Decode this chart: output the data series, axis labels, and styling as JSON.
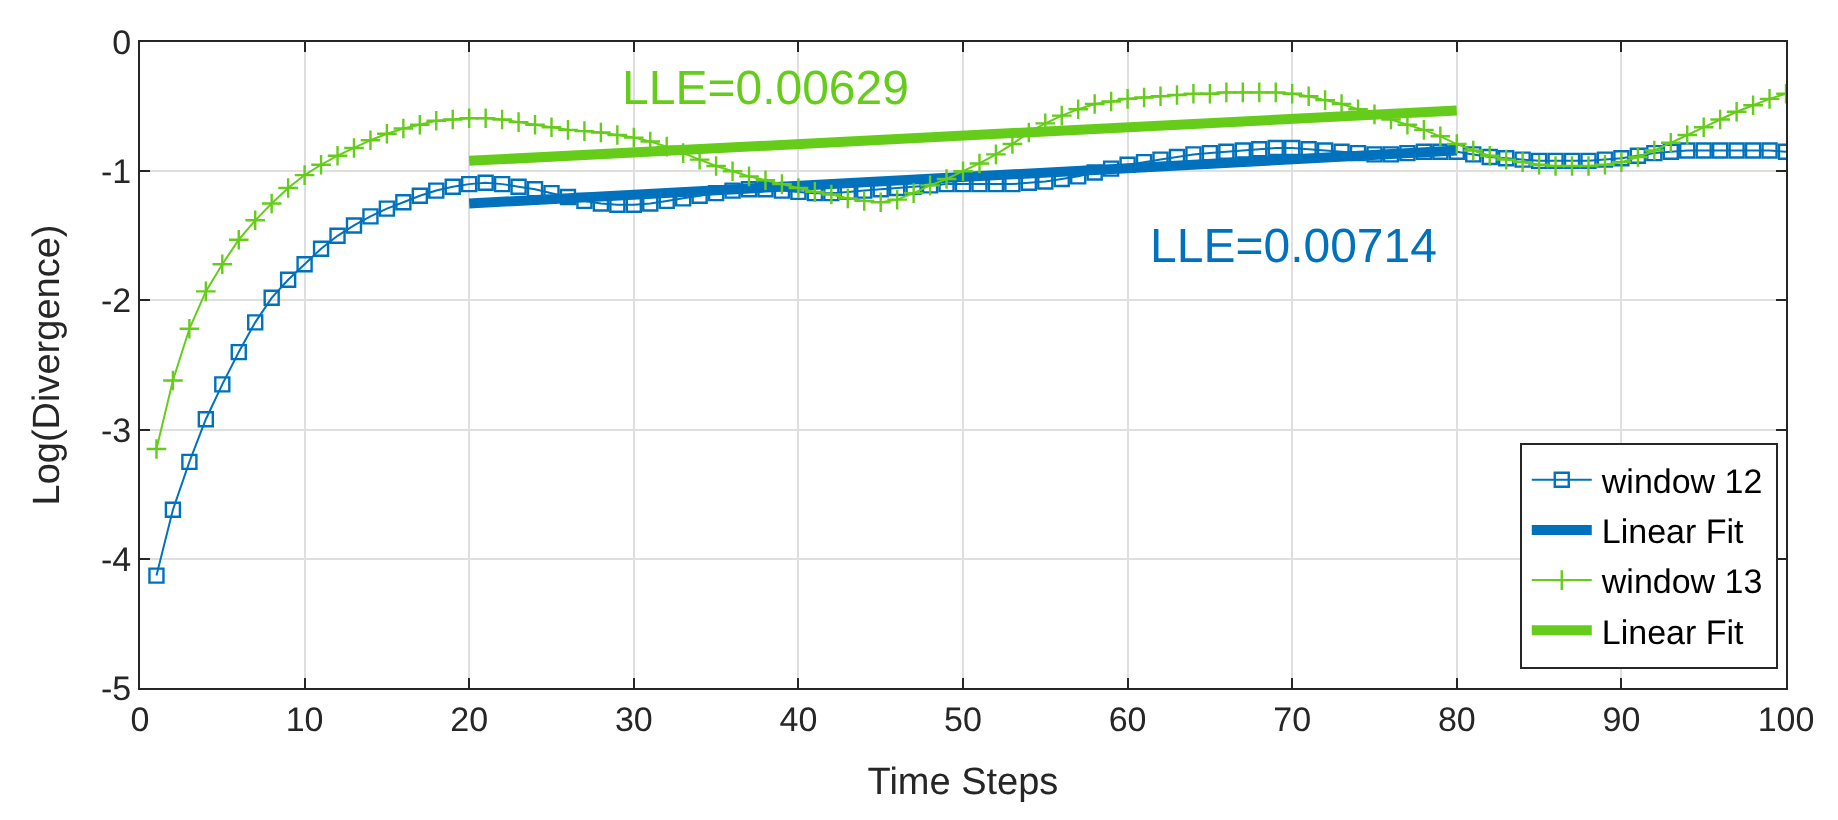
{
  "chart_data": {
    "type": "line",
    "xlabel": "Time Steps",
    "ylabel": "Log(Divergence)",
    "xlim": [
      0,
      100
    ],
    "ylim": [
      -5,
      0
    ],
    "xticks": [
      0,
      10,
      20,
      30,
      40,
      50,
      60,
      70,
      80,
      90,
      100
    ],
    "yticks": [
      -5,
      -4,
      -3,
      -2,
      -1,
      0
    ],
    "grid": true,
    "legend": "bottom right",
    "series": [
      {
        "name": "window 12",
        "color": "#0072bd",
        "marker": "square",
        "x": [
          1,
          2,
          3,
          4,
          5,
          6,
          7,
          8,
          9,
          10,
          11,
          12,
          13,
          14,
          15,
          16,
          17,
          18,
          19,
          20,
          21,
          22,
          23,
          24,
          25,
          26,
          27,
          28,
          29,
          30,
          31,
          32,
          33,
          34,
          35,
          36,
          37,
          38,
          39,
          40,
          41,
          42,
          43,
          44,
          45,
          46,
          47,
          48,
          49,
          50,
          51,
          52,
          53,
          54,
          55,
          56,
          57,
          58,
          59,
          60,
          61,
          62,
          63,
          64,
          65,
          66,
          67,
          68,
          69,
          70,
          71,
          72,
          73,
          74,
          75,
          76,
          77,
          78,
          79,
          80,
          81,
          82,
          83,
          84,
          85,
          86,
          87,
          88,
          89,
          90,
          91,
          92,
          93,
          94,
          95,
          96,
          97,
          98,
          99,
          100
        ],
        "values": [
          -4.13,
          -3.62,
          -3.25,
          -2.92,
          -2.65,
          -2.4,
          -2.17,
          -1.98,
          -1.84,
          -1.72,
          -1.6,
          -1.5,
          -1.42,
          -1.35,
          -1.29,
          -1.24,
          -1.19,
          -1.15,
          -1.12,
          -1.1,
          -1.09,
          -1.1,
          -1.12,
          -1.14,
          -1.17,
          -1.2,
          -1.23,
          -1.25,
          -1.26,
          -1.26,
          -1.25,
          -1.23,
          -1.21,
          -1.19,
          -1.17,
          -1.15,
          -1.14,
          -1.14,
          -1.15,
          -1.16,
          -1.17,
          -1.17,
          -1.16,
          -1.15,
          -1.14,
          -1.13,
          -1.12,
          -1.11,
          -1.1,
          -1.1,
          -1.1,
          -1.1,
          -1.1,
          -1.09,
          -1.08,
          -1.06,
          -1.04,
          -1.01,
          -0.98,
          -0.95,
          -0.93,
          -0.91,
          -0.89,
          -0.87,
          -0.86,
          -0.85,
          -0.84,
          -0.83,
          -0.82,
          -0.82,
          -0.83,
          -0.84,
          -0.85,
          -0.86,
          -0.87,
          -0.87,
          -0.86,
          -0.85,
          -0.85,
          -0.85,
          -0.87,
          -0.89,
          -0.9,
          -0.91,
          -0.92,
          -0.92,
          -0.92,
          -0.92,
          -0.91,
          -0.9,
          -0.88,
          -0.86,
          -0.85,
          -0.84,
          -0.84,
          -0.84,
          -0.84,
          -0.84,
          -0.84,
          -0.85
        ]
      },
      {
        "name": "Linear Fit",
        "color": "#0072bd",
        "marker": "none",
        "x": [
          20,
          80
        ],
        "values": [
          -1.25,
          -0.84
        ]
      },
      {
        "name": "window 13",
        "color": "#66cc1a",
        "marker": "cross",
        "x": [
          1,
          2,
          3,
          4,
          5,
          6,
          7,
          8,
          9,
          10,
          11,
          12,
          13,
          14,
          15,
          16,
          17,
          18,
          19,
          20,
          21,
          22,
          23,
          24,
          25,
          26,
          27,
          28,
          29,
          30,
          31,
          32,
          33,
          34,
          35,
          36,
          37,
          38,
          39,
          40,
          41,
          42,
          43,
          44,
          45,
          46,
          47,
          48,
          49,
          50,
          51,
          52,
          53,
          54,
          55,
          56,
          57,
          58,
          59,
          60,
          61,
          62,
          63,
          64,
          65,
          66,
          67,
          68,
          69,
          70,
          71,
          72,
          73,
          74,
          75,
          76,
          77,
          78,
          79,
          80,
          81,
          82,
          83,
          84,
          85,
          86,
          87,
          88,
          89,
          90,
          91,
          92,
          93,
          94,
          95,
          96,
          97,
          98,
          99,
          100
        ],
        "values": [
          -3.15,
          -2.62,
          -2.22,
          -1.93,
          -1.72,
          -1.53,
          -1.38,
          -1.25,
          -1.13,
          -1.03,
          -0.95,
          -0.88,
          -0.82,
          -0.76,
          -0.71,
          -0.67,
          -0.64,
          -0.61,
          -0.6,
          -0.59,
          -0.59,
          -0.6,
          -0.62,
          -0.64,
          -0.66,
          -0.68,
          -0.69,
          -0.7,
          -0.72,
          -0.74,
          -0.77,
          -0.81,
          -0.86,
          -0.91,
          -0.96,
          -1.0,
          -1.04,
          -1.07,
          -1.1,
          -1.13,
          -1.16,
          -1.18,
          -1.21,
          -1.23,
          -1.24,
          -1.22,
          -1.17,
          -1.11,
          -1.06,
          -1.0,
          -0.94,
          -0.87,
          -0.79,
          -0.7,
          -0.63,
          -0.57,
          -0.52,
          -0.48,
          -0.46,
          -0.44,
          -0.43,
          -0.42,
          -0.41,
          -0.4,
          -0.4,
          -0.39,
          -0.39,
          -0.39,
          -0.39,
          -0.4,
          -0.42,
          -0.45,
          -0.48,
          -0.52,
          -0.56,
          -0.6,
          -0.64,
          -0.68,
          -0.73,
          -0.79,
          -0.84,
          -0.88,
          -0.91,
          -0.93,
          -0.95,
          -0.96,
          -0.96,
          -0.96,
          -0.95,
          -0.93,
          -0.89,
          -0.84,
          -0.78,
          -0.72,
          -0.66,
          -0.6,
          -0.54,
          -0.49,
          -0.44,
          -0.4
        ]
      },
      {
        "name": "Linear Fit",
        "color": "#66cc1a",
        "marker": "none",
        "x": [
          20,
          80
        ],
        "values": [
          -0.92,
          -0.53
        ]
      }
    ],
    "annotations": [
      "LLE=0.00629",
      "LLE=0.00714"
    ]
  }
}
